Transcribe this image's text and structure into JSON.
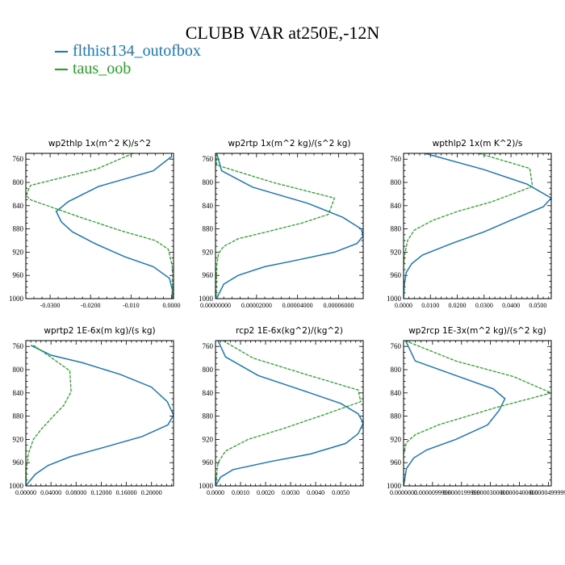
{
  "title": "CLUBB VAR at250E,-12N",
  "legend": [
    {
      "name": "flthist134_outofbox",
      "color": "#1f77b4"
    },
    {
      "name": "taus_oob",
      "color": "#2ca02c"
    }
  ],
  "chart_data": [
    {
      "type": "line",
      "title": "wp2thlp  1x(m^2 K)/s^2",
      "xlim": [
        -0.036,
        0.0005
      ],
      "ylim": [
        1000,
        750
      ],
      "yticks": [
        760,
        800,
        840,
        880,
        920,
        960,
        1000
      ],
      "xticks": [
        -0.03,
        -0.02,
        -0.01,
        0.0
      ],
      "xticklabels": [
        "-0.0300",
        "-0.0200",
        "-0.010",
        "0.0000"
      ],
      "series": [
        {
          "name": "flthist134_outofbox",
          "color": "#1f77b4",
          "style": "solid",
          "points": [
            [
              0.0001,
              755
            ],
            [
              -0.0045,
              780
            ],
            [
              -0.018,
              807
            ],
            [
              -0.0255,
              833
            ],
            [
              -0.0285,
              850
            ],
            [
              -0.0272,
              868
            ],
            [
              -0.0245,
              885
            ],
            [
              -0.019,
              905
            ],
            [
              -0.0115,
              928
            ],
            [
              -0.0045,
              945
            ],
            [
              -0.0005,
              965
            ],
            [
              0.0002,
              985
            ],
            [
              0.0002,
              1000
            ]
          ]
        },
        {
          "name": "taus_oob",
          "color": "#2ca02c",
          "style": "dashed",
          "points": [
            [
              -0.0095,
              750
            ],
            [
              -0.0185,
              777
            ],
            [
              -0.0348,
              805
            ],
            [
              -0.036,
              822
            ],
            [
              -0.0348,
              830
            ],
            [
              -0.0225,
              860
            ],
            [
              -0.0125,
              883
            ],
            [
              -0.004,
              900
            ],
            [
              -0.0008,
              915
            ],
            [
              0.0002,
              945
            ],
            [
              0.0003,
              1000
            ]
          ]
        }
      ]
    },
    {
      "type": "line",
      "title": "wp2rtp  1x(m^2 kg)/(s^2 kg)",
      "xlim": [
        0.0,
        7.2e-05
      ],
      "ylim": [
        1000,
        750
      ],
      "yticks": [
        760,
        800,
        840,
        880,
        920,
        960,
        1000
      ],
      "xticks": [
        0.0,
        2e-05,
        4e-05,
        6e-05
      ],
      "xticklabels": [
        "0.00000000",
        "0.00002000",
        "0.00004000",
        "0.00006000"
      ],
      "series": [
        {
          "name": "flthist134_outofbox",
          "color": "#1f77b4",
          "style": "solid",
          "points": [
            [
              6e-07,
              750
            ],
            [
              3e-06,
              780
            ],
            [
              1.8e-05,
              808
            ],
            [
              4.5e-05,
              836
            ],
            [
              6.2e-05,
              860
            ],
            [
              7.1e-05,
              880
            ],
            [
              7.2e-05,
              892
            ],
            [
              6.9e-05,
              905
            ],
            [
              5.8e-05,
              920
            ],
            [
              3.8e-05,
              935
            ],
            [
              2.4e-05,
              945
            ],
            [
              1.1e-05,
              960
            ],
            [
              4e-06,
              975
            ],
            [
              5e-07,
              1000
            ]
          ]
        },
        {
          "name": "taus_oob",
          "color": "#2ca02c",
          "style": "dashed",
          "points": [
            [
              5e-07,
              750
            ],
            [
              5e-07,
              770
            ],
            [
              2.8e-05,
              800
            ],
            [
              5.8e-05,
              827
            ],
            [
              5.5e-05,
              855
            ],
            [
              4.2e-05,
              870
            ],
            [
              2.5e-05,
              885
            ],
            [
              1.1e-05,
              897
            ],
            [
              4e-06,
              910
            ],
            [
              1.5e-06,
              922
            ],
            [
              5e-07,
              945
            ],
            [
              3e-07,
              1000
            ]
          ]
        }
      ]
    },
    {
      "type": "line",
      "title": "wpthlp2  1x(m K^2)/s",
      "xlim": [
        0.0,
        0.055
      ],
      "ylim": [
        1000,
        750
      ],
      "yticks": [
        760,
        800,
        840,
        880,
        920,
        960,
        1000
      ],
      "xticks": [
        0.0,
        0.01,
        0.02,
        0.03,
        0.04,
        0.05
      ],
      "xticklabels": [
        "0.0000",
        "0.0100",
        "0.0200",
        "0.0300",
        "0.0400",
        "0.0500"
      ],
      "series": [
        {
          "name": "flthist134_outofbox",
          "color": "#1f77b4",
          "style": "solid",
          "points": [
            [
              0.008,
              750
            ],
            [
              0.03,
              778
            ],
            [
              0.046,
              803
            ],
            [
              0.055,
              827
            ],
            [
              0.052,
              842
            ],
            [
              0.04,
              865
            ],
            [
              0.03,
              885
            ],
            [
              0.018,
              905
            ],
            [
              0.007,
              925
            ],
            [
              0.003,
              940
            ],
            [
              0.001,
              955
            ],
            [
              0.0003,
              975
            ],
            [
              0.0,
              1000
            ]
          ]
        },
        {
          "name": "taus_oob",
          "color": "#2ca02c",
          "style": "dashed",
          "points": [
            [
              0.028,
              750
            ],
            [
              0.047,
              776
            ],
            [
              0.048,
              807
            ],
            [
              0.033,
              833
            ],
            [
              0.02,
              850
            ],
            [
              0.011,
              865
            ],
            [
              0.004,
              882
            ],
            [
              0.0015,
              900
            ],
            [
              0.0005,
              922
            ],
            [
              0.0,
              945
            ],
            [
              0.0,
              1000
            ]
          ]
        }
      ]
    },
    {
      "type": "line",
      "title": "wprtp2  1E-6x(m kg)/(s kg)",
      "xlim": [
        0.0,
        0.235
      ],
      "ylim": [
        1000,
        750
      ],
      "yticks": [
        760,
        800,
        840,
        880,
        920,
        960,
        1000
      ],
      "xticks": [
        0.0,
        0.04,
        0.08,
        0.12,
        0.16,
        0.2
      ],
      "xticklabels": [
        "0.00000",
        "0.04000",
        "0.08000",
        "0.12000",
        "0.16000",
        "0.20000"
      ],
      "series": [
        {
          "name": "flthist134_outofbox",
          "color": "#1f77b4",
          "style": "solid",
          "points": [
            [
              0.008,
              758
            ],
            [
              0.04,
              775
            ],
            [
              0.09,
              788
            ],
            [
              0.15,
              808
            ],
            [
              0.2,
              830
            ],
            [
              0.225,
              855
            ],
            [
              0.235,
              878
            ],
            [
              0.226,
              895
            ],
            [
              0.185,
              915
            ],
            [
              0.12,
              935
            ],
            [
              0.07,
              950
            ],
            [
              0.035,
              965
            ],
            [
              0.015,
              980
            ],
            [
              0.005,
              993
            ],
            [
              0.0,
              1000
            ]
          ]
        },
        {
          "name": "taus_oob",
          "color": "#2ca02c",
          "style": "dashed",
          "points": [
            [
              0.012,
              758
            ],
            [
              0.035,
              775
            ],
            [
              0.07,
              802
            ],
            [
              0.072,
              838
            ],
            [
              0.06,
              862
            ],
            [
              0.042,
              882
            ],
            [
              0.025,
              902
            ],
            [
              0.012,
              920
            ],
            [
              0.004,
              945
            ],
            [
              0.001,
              970
            ],
            [
              0.0,
              1000
            ]
          ]
        }
      ]
    },
    {
      "type": "line",
      "title": "rcp2  1E-6x(kg^2)/(kg^2)",
      "xlim": [
        0.0,
        0.0059
      ],
      "ylim": [
        1000,
        750
      ],
      "yticks": [
        760,
        800,
        840,
        880,
        920,
        960,
        1000
      ],
      "xticks": [
        0.0,
        0.001,
        0.002,
        0.003,
        0.004,
        0.005
      ],
      "xticklabels": [
        "0.0000",
        "0.0010",
        "0.0020",
        "0.0030",
        "0.0040",
        "0.0050"
      ],
      "series": [
        {
          "name": "flthist134_outofbox",
          "color": "#1f77b4",
          "style": "solid",
          "points": [
            [
              0.0001,
              750
            ],
            [
              0.0004,
              778
            ],
            [
              0.0017,
              810
            ],
            [
              0.0035,
              836
            ],
            [
              0.005,
              858
            ],
            [
              0.0057,
              876
            ],
            [
              0.0059,
              892
            ],
            [
              0.0057,
              910
            ],
            [
              0.0052,
              927
            ],
            [
              0.0038,
              945
            ],
            [
              0.0022,
              958
            ],
            [
              0.0007,
              972
            ],
            [
              0.0002,
              985
            ],
            [
              0.0,
              1000
            ]
          ]
        },
        {
          "name": "taus_oob",
          "color": "#2ca02c",
          "style": "dashed",
          "points": [
            [
              0.0003,
              750
            ],
            [
              0.0015,
              780
            ],
            [
              0.0036,
              808
            ],
            [
              0.0057,
              835
            ],
            [
              0.0058,
              855
            ],
            [
              0.0045,
              875
            ],
            [
              0.0028,
              900
            ],
            [
              0.0013,
              920
            ],
            [
              0.0004,
              940
            ],
            [
              0.0001,
              960
            ],
            [
              0.0,
              1000
            ]
          ]
        }
      ]
    },
    {
      "type": "line",
      "title": "wp2rcp  1E-3x(m^2 kg)/(s^2 kg)",
      "xlim": [
        0.0,
        5.1e-05
      ],
      "ylim": [
        1000,
        750
      ],
      "yticks": [
        760,
        800,
        840,
        880,
        920,
        960,
        1000
      ],
      "xticks": [
        0.0,
        1e-05,
        2e-05,
        3e-05,
        4e-05,
        5e-05
      ],
      "xticklabels": [
        "0.0000000",
        "0.0000099999",
        "0.0000199999",
        "0.0000300000",
        "0.0000400000",
        "0.0000499999"
      ],
      "series": [
        {
          "name": "flthist134_outofbox",
          "color": "#1f77b4",
          "style": "solid",
          "points": [
            [
              7e-07,
              750
            ],
            [
              4e-06,
              785
            ],
            [
              1.8e-05,
              810
            ],
            [
              3.1e-05,
              833
            ],
            [
              3.5e-05,
              850
            ],
            [
              3.3e-05,
              870
            ],
            [
              2.9e-05,
              895
            ],
            [
              1.8e-05,
              920
            ],
            [
              8e-06,
              938
            ],
            [
              3.5e-06,
              952
            ],
            [
              1e-06,
              970
            ],
            [
              0.0,
              1000
            ]
          ]
        },
        {
          "name": "taus_oob",
          "color": "#2ca02c",
          "style": "dashed",
          "points": [
            [
              5e-07,
              750
            ],
            [
              1.8e-05,
              785
            ],
            [
              3.8e-05,
              812
            ],
            [
              5.1e-05,
              840
            ],
            [
              3.2e-05,
              865
            ],
            [
              1.2e-05,
              895
            ],
            [
              4e-06,
              912
            ],
            [
              1e-06,
              925
            ],
            [
              0.0,
              945
            ],
            [
              0.0,
              1000
            ]
          ]
        }
      ]
    }
  ]
}
